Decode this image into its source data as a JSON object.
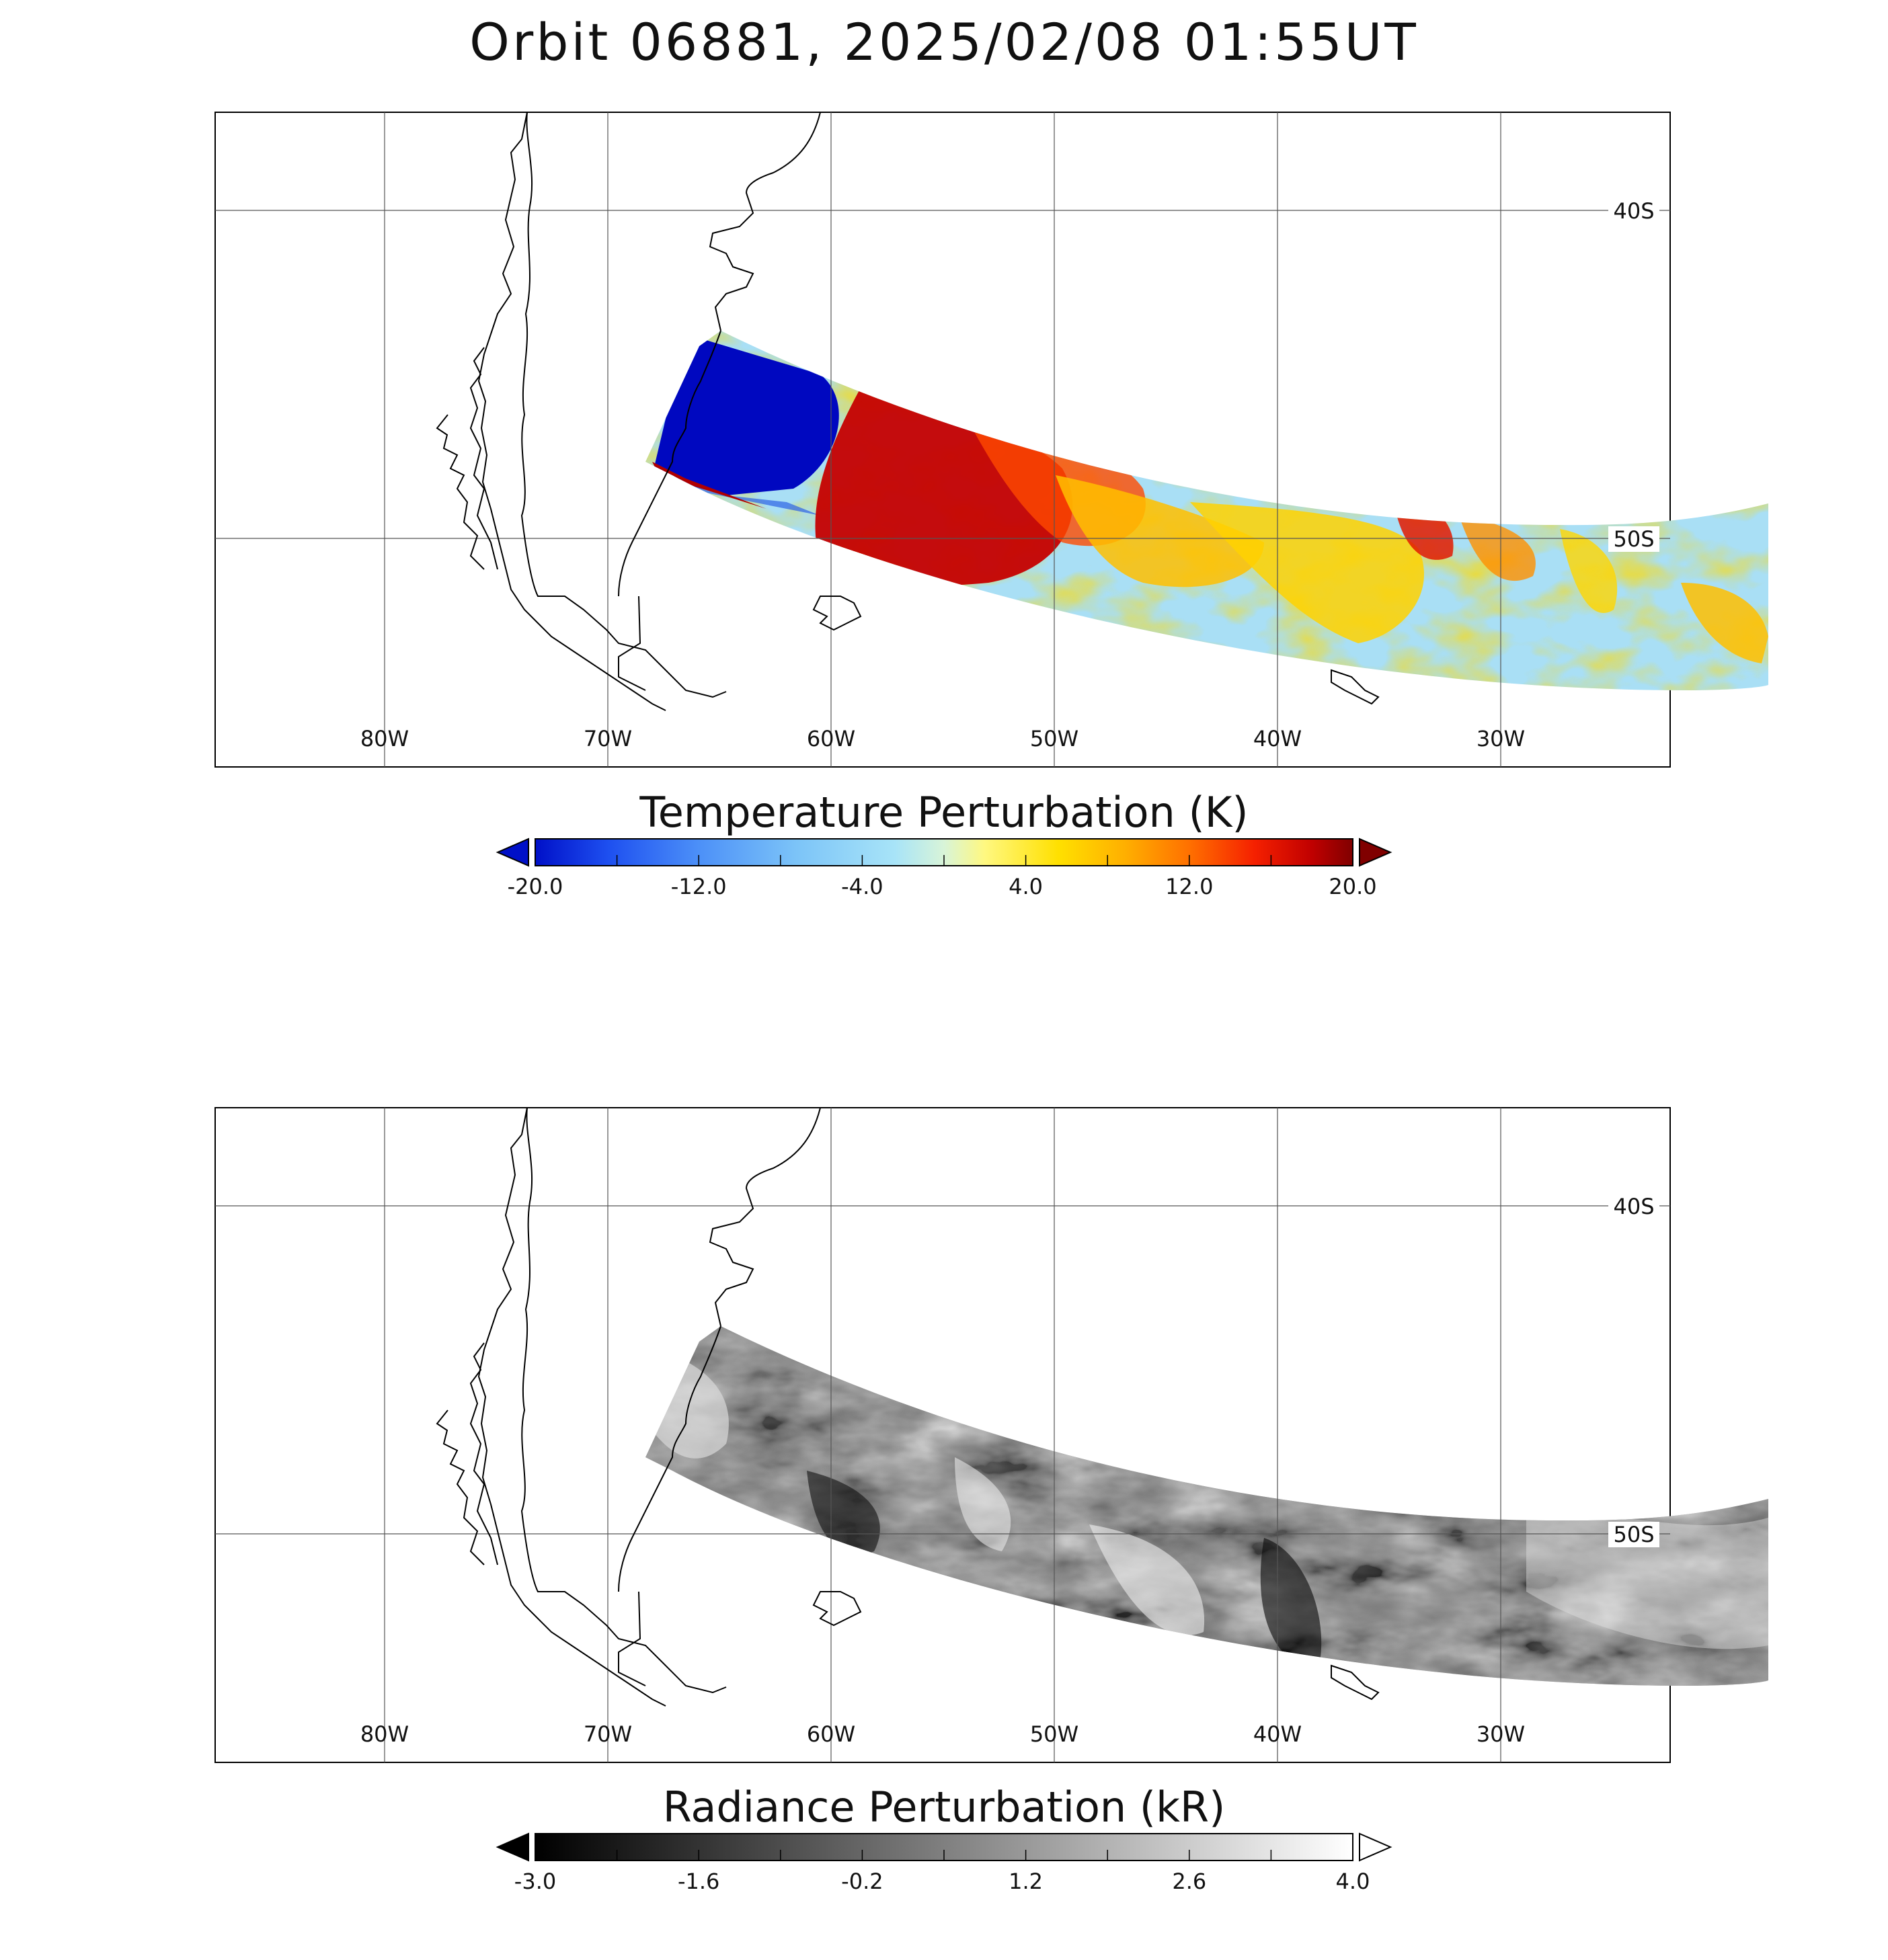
{
  "title": "Orbit 06881, 2025/02/08 01:55UT",
  "lon_labels": [
    "80W",
    "70W",
    "60W",
    "50W",
    "40W",
    "30W"
  ],
  "lat_labels": [
    "40S",
    "50S"
  ],
  "panels": [
    {
      "id": "temperature",
      "colorbar": {
        "title": "Temperature Perturbation (K)",
        "ticks": [
          "-20.0",
          "-12.0",
          "-4.0",
          "4.0",
          "12.0",
          "20.0"
        ],
        "min": -20.0,
        "max": 20.0,
        "colors": [
          "#0010c8",
          "#1e50f0",
          "#4c90f8",
          "#7cc4f8",
          "#a8e4f8",
          "#d0f0e0",
          "#fff880",
          "#ffe000",
          "#ffb000",
          "#ff7000",
          "#f52000",
          "#c00000",
          "#800000"
        ],
        "under_color": "#0010c8",
        "over_color": "#800000"
      }
    },
    {
      "id": "radiance",
      "colorbar": {
        "title": "Radiance Perturbation (kR)",
        "ticks": [
          "-3.0",
          "-1.6",
          "-0.2",
          "1.2",
          "2.6",
          "4.0"
        ],
        "min": -3.0,
        "max": 4.0,
        "colors": [
          "#000000",
          "#ffffff"
        ],
        "under_color": "#000000",
        "over_color": "#ffffff"
      }
    }
  ],
  "map": {
    "projection": "equidistant",
    "lon_range": [
      "-87.5",
      "-22.5"
    ],
    "lat_range": [
      "-35.5",
      "-61.5"
    ],
    "swath": "orbit swath crossing from southern Patagonia coast (~68W, 46S) eastward to ~25W near 50S"
  }
}
